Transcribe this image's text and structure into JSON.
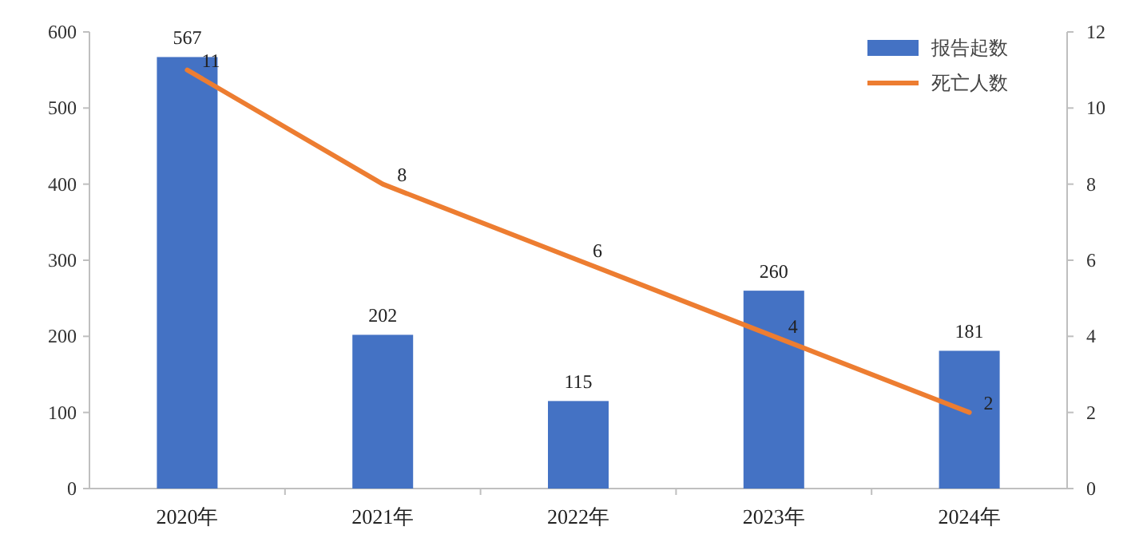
{
  "chart_data": {
    "type": "bar",
    "categories": [
      "2020年",
      "2021年",
      "2022年",
      "2023年",
      "2024年"
    ],
    "series": [
      {
        "name": "报告起数",
        "color": "#4472c4",
        "values": [
          567,
          202,
          115,
          260,
          181
        ]
      },
      {
        "name": "死亡人数",
        "type": "line",
        "axis": "y2",
        "color": "#ed7d31",
        "values": [
          11,
          8,
          6,
          4,
          2
        ]
      }
    ],
    "ylim": [
      0,
      600
    ],
    "yticks": [
      0,
      100,
      200,
      300,
      400,
      500,
      600
    ],
    "y2lim": [
      0,
      12
    ],
    "y2ticks": [
      0,
      2,
      4,
      6,
      8,
      10,
      12
    ],
    "legend": "top right",
    "data_labels": true,
    "grid": false
  }
}
